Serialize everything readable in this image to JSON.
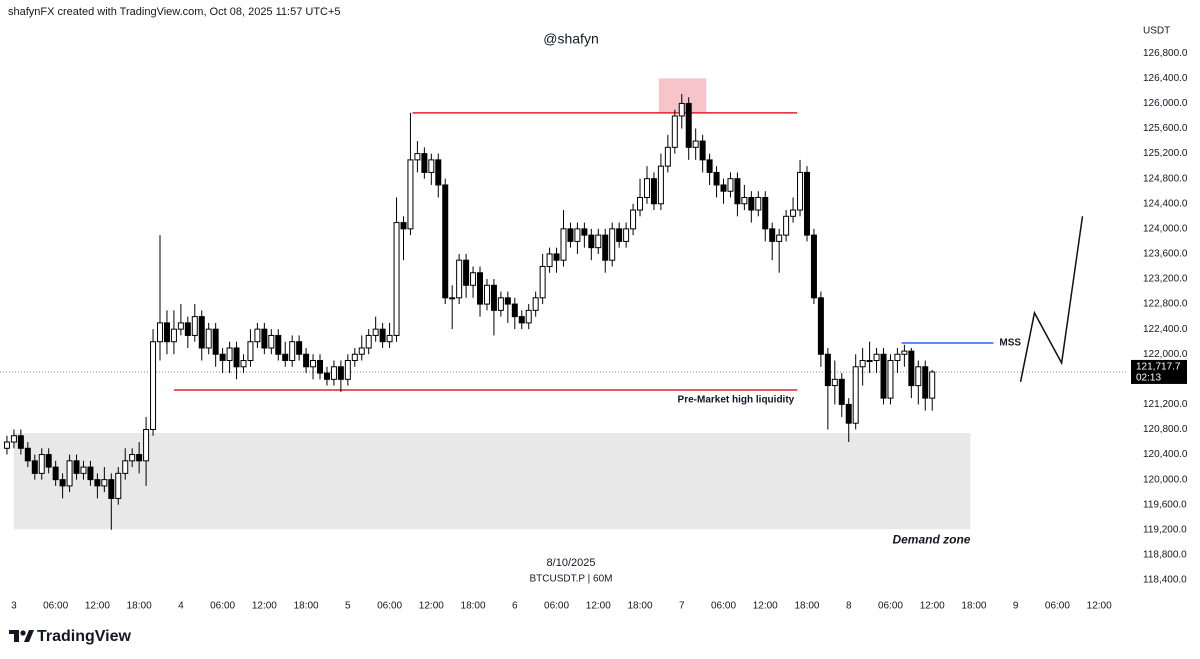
{
  "header": "shafynFX created with TradingView.com, Oct 08, 2025 11:57 UTC+5",
  "footer": {
    "brand": "TradingView"
  },
  "chart_data": {
    "type": "candlestick",
    "title": "@shafyn",
    "date_label": "8/10/2025",
    "symbol": "BTCUSDT.P | 60M",
    "y_axis_label": "USDT",
    "up_color": "#ffffff",
    "down_color": "#000000",
    "border_color": "#000000",
    "x": [
      -1,
      0,
      1,
      2,
      3,
      4,
      5,
      6,
      7,
      8,
      9,
      10,
      11,
      12,
      13,
      14,
      15,
      16,
      17,
      18,
      19,
      20,
      21,
      22,
      23,
      24,
      25,
      26,
      27,
      28,
      29,
      30,
      31,
      32,
      33,
      34,
      35,
      36,
      37,
      38,
      39,
      40,
      41,
      42,
      43,
      44,
      45,
      46,
      47,
      48,
      49,
      50,
      51,
      52,
      53,
      54,
      55,
      56,
      57,
      58,
      59,
      60,
      61,
      62,
      63,
      64,
      65,
      66,
      67,
      68,
      69,
      70,
      71,
      72,
      73,
      74,
      75,
      76,
      77,
      78,
      79,
      80,
      81,
      82,
      83,
      84,
      85,
      86,
      87,
      88,
      89,
      90,
      91,
      92,
      93,
      94,
      95,
      96,
      97,
      98,
      99,
      100,
      101,
      102,
      103,
      104,
      105,
      106,
      107,
      108,
      109,
      110,
      111,
      112,
      113,
      114,
      115,
      116,
      117,
      118,
      119,
      120,
      121,
      122,
      123,
      124,
      125,
      126,
      127,
      128,
      129,
      130,
      131,
      132
    ],
    "open": [
      120500,
      120600,
      120700,
      120500,
      120300,
      120100,
      120400,
      120200,
      120000,
      119900,
      120300,
      120100,
      120200,
      120000,
      119900,
      120000,
      119700,
      120100,
      120300,
      120400,
      120300,
      120800,
      122200,
      122500,
      122200,
      122400,
      122500,
      122300,
      122600,
      122100,
      122400,
      122000,
      121900,
      122100,
      121800,
      121900,
      122200,
      122400,
      122100,
      122300,
      122000,
      121900,
      122200,
      122000,
      121800,
      121900,
      121700,
      121600,
      121800,
      121600,
      121900,
      122000,
      122100,
      122300,
      122400,
      122200,
      122300,
      124100,
      124000,
      125100,
      125200,
      124900,
      125100,
      124700,
      122900,
      122900,
      123500,
      123100,
      123300,
      122800,
      123100,
      122700,
      122900,
      122800,
      122600,
      122500,
      122700,
      122900,
      123400,
      123600,
      123500,
      124000,
      123800,
      124000,
      123900,
      123700,
      123900,
      123500,
      124000,
      123800,
      124000,
      124300,
      124500,
      124800,
      124400,
      125000,
      125300,
      125800,
      126000,
      125300,
      125400,
      125100,
      124900,
      124700,
      124600,
      124800,
      124400,
      124500,
      124300,
      124500,
      124000,
      123800,
      123900,
      124200,
      124300,
      124900,
      123900,
      122900,
      122000,
      121500,
      121600,
      121200,
      120900,
      121800,
      121900,
      121900,
      122000,
      121300,
      121900,
      122000,
      122050,
      121500,
      121800,
      121300
    ],
    "high": [
      120700,
      120800,
      120800,
      120600,
      120400,
      120500,
      120500,
      120300,
      120100,
      120400,
      120400,
      120300,
      120300,
      120100,
      120200,
      120100,
      120200,
      120500,
      120500,
      120600,
      121000,
      122400,
      123900,
      122700,
      122700,
      122800,
      122600,
      122800,
      122700,
      122500,
      122500,
      122100,
      122200,
      122200,
      122000,
      122400,
      122500,
      122500,
      122400,
      122400,
      122200,
      122300,
      122300,
      122100,
      122000,
      122000,
      121800,
      121900,
      121900,
      122000,
      122100,
      122300,
      122400,
      122600,
      122500,
      122500,
      124500,
      124200,
      125850,
      125400,
      125300,
      125200,
      125200,
      124800,
      123100,
      123600,
      123600,
      123400,
      123400,
      123200,
      123200,
      123000,
      123000,
      122900,
      122700,
      122800,
      123000,
      123600,
      123700,
      123700,
      124300,
      124100,
      124100,
      124100,
      124000,
      124000,
      124000,
      124100,
      124100,
      124100,
      124400,
      124800,
      125000,
      124900,
      125200,
      125500,
      125900,
      126150,
      126100,
      125600,
      125500,
      125200,
      125000,
      124800,
      124900,
      124900,
      124700,
      124600,
      124600,
      124600,
      124100,
      124000,
      124300,
      124500,
      125100,
      125000,
      124000,
      123000,
      122100,
      121900,
      121700,
      121300,
      122000,
      122100,
      122200,
      122100,
      122100,
      122000,
      122100,
      122150,
      122100,
      121900,
      121900,
      121750
    ],
    "low": [
      120400,
      120500,
      120400,
      120200,
      120000,
      120000,
      120100,
      119900,
      119700,
      119800,
      120000,
      120000,
      119900,
      119700,
      119800,
      119200,
      119600,
      120000,
      120200,
      120100,
      119900,
      120700,
      121900,
      122000,
      122000,
      122300,
      122100,
      122200,
      121900,
      122000,
      121800,
      121700,
      121700,
      121600,
      121700,
      121800,
      122100,
      122000,
      122000,
      121900,
      121800,
      121800,
      121900,
      121700,
      121600,
      121600,
      121500,
      121500,
      121400,
      121500,
      121800,
      121900,
      122000,
      122200,
      122100,
      122100,
      122200,
      123500,
      123900,
      124900,
      124800,
      124700,
      124500,
      122800,
      122400,
      122800,
      122900,
      122900,
      122600,
      122700,
      122300,
      122600,
      122500,
      122400,
      122400,
      122400,
      122600,
      122800,
      123300,
      123300,
      123400,
      123700,
      123600,
      123700,
      123500,
      123600,
      123300,
      123400,
      123700,
      123700,
      123900,
      124200,
      124400,
      124300,
      124300,
      124900,
      125200,
      125600,
      125100,
      125100,
      124900,
      124700,
      124500,
      124400,
      124500,
      124200,
      124300,
      124100,
      124200,
      123800,
      123500,
      123300,
      123800,
      124100,
      124200,
      123800,
      122800,
      121800,
      120800,
      121200,
      121000,
      120600,
      120800,
      121500,
      121700,
      121700,
      121200,
      121200,
      121700,
      121800,
      121300,
      121200,
      121100,
      121100
    ],
    "close": [
      120600,
      120700,
      120500,
      120300,
      120100,
      120400,
      120200,
      120000,
      119900,
      120300,
      120100,
      120200,
      120000,
      119900,
      120000,
      119700,
      120100,
      120300,
      120400,
      120300,
      120800,
      122200,
      122500,
      122200,
      122400,
      122500,
      122300,
      122600,
      122100,
      122400,
      122000,
      121900,
      122100,
      121800,
      121900,
      122200,
      122400,
      122100,
      122300,
      122000,
      121900,
      122200,
      122000,
      121800,
      121900,
      121700,
      121600,
      121800,
      121600,
      121900,
      122000,
      122100,
      122300,
      122400,
      122200,
      122300,
      124100,
      124000,
      125100,
      125200,
      124900,
      125100,
      124700,
      122900,
      122900,
      123500,
      123100,
      123300,
      122800,
      123100,
      122700,
      122900,
      122800,
      122600,
      122500,
      122700,
      122900,
      123400,
      123600,
      123500,
      124000,
      123800,
      124000,
      123900,
      123700,
      123900,
      123500,
      124000,
      123800,
      124000,
      124300,
      124500,
      124800,
      124400,
      125000,
      125300,
      125800,
      126000,
      125300,
      125400,
      125100,
      124900,
      124700,
      124600,
      124800,
      124400,
      124500,
      124300,
      124500,
      124000,
      123800,
      123900,
      124200,
      124300,
      124900,
      123900,
      122900,
      122000,
      121500,
      121600,
      121200,
      120900,
      121800,
      121900,
      121900,
      122000,
      121300,
      121900,
      122000,
      122050,
      121500,
      121800,
      121300,
      121717.7
    ],
    "xlim": [
      -2,
      160
    ],
    "ylim": [
      118160,
      127650
    ],
    "xticks": [
      {
        "value": 0,
        "label": "3"
      },
      {
        "value": 6,
        "label": "06:00"
      },
      {
        "value": 12,
        "label": "12:00"
      },
      {
        "value": 18,
        "label": "18:00"
      },
      {
        "value": 24,
        "label": "4"
      },
      {
        "value": 30,
        "label": "06:00"
      },
      {
        "value": 36,
        "label": "12:00"
      },
      {
        "value": 42,
        "label": "18:00"
      },
      {
        "value": 48,
        "label": "5"
      },
      {
        "value": 54,
        "label": "06:00"
      },
      {
        "value": 60,
        "label": "12:00"
      },
      {
        "value": 66,
        "label": "18:00"
      },
      {
        "value": 72,
        "label": "6"
      },
      {
        "value": 78,
        "label": "06:00"
      },
      {
        "value": 84,
        "label": "12:00"
      },
      {
        "value": 90,
        "label": "18:00"
      },
      {
        "value": 96,
        "label": "7"
      },
      {
        "value": 102,
        "label": "06:00"
      },
      {
        "value": 108,
        "label": "12:00"
      },
      {
        "value": 114,
        "label": "18:00"
      },
      {
        "value": 120,
        "label": "8"
      },
      {
        "value": 126,
        "label": "06:00"
      },
      {
        "value": 132,
        "label": "12:00"
      },
      {
        "value": 138,
        "label": "18:00"
      },
      {
        "value": 144,
        "label": "9"
      },
      {
        "value": 150,
        "label": "06:00"
      },
      {
        "value": 156,
        "label": "12:00"
      }
    ],
    "yticks": [
      {
        "value": 126800,
        "label": "126,800.0"
      },
      {
        "value": 126400,
        "label": "126,400.0"
      },
      {
        "value": 126000,
        "label": "126,000.0"
      },
      {
        "value": 125600,
        "label": "125,600.0"
      },
      {
        "value": 125200,
        "label": "125,200.0"
      },
      {
        "value": 124800,
        "label": "124,800.0"
      },
      {
        "value": 124400,
        "label": "124,400.0"
      },
      {
        "value": 124000,
        "label": "124,000.0"
      },
      {
        "value": 123600,
        "label": "123,600.0"
      },
      {
        "value": 123200,
        "label": "123,200.0"
      },
      {
        "value": 122800,
        "label": "122,800.0"
      },
      {
        "value": 122400,
        "label": "122,400.0"
      },
      {
        "value": 122000,
        "label": "122,000.0"
      },
      {
        "value": 121600,
        "label": "121,600.0"
      },
      {
        "value": 121200,
        "label": "121,200.0"
      },
      {
        "value": 120800,
        "label": "120,800.0"
      },
      {
        "value": 120400,
        "label": "120,400.0"
      },
      {
        "value": 120000,
        "label": "120,000.0"
      },
      {
        "value": 119600,
        "label": "119,600.0"
      },
      {
        "value": 119200,
        "label": "119,200.0"
      },
      {
        "value": 118800,
        "label": "118,800.0"
      },
      {
        "value": 118400,
        "label": "118,400.0"
      }
    ],
    "price_marker": {
      "value": 121717.7,
      "label": "121,717.7",
      "countdown": "02:13"
    },
    "annotations": [
      {
        "type": "rect",
        "x": [
          0,
          137.5
        ],
        "y": [
          119210,
          120745
        ],
        "color": "#e8e8e8",
        "label": "Demand zone",
        "label_position": "below-end"
      },
      {
        "type": "rect",
        "x": [
          92.7,
          99.5
        ],
        "y": [
          125850,
          126400
        ],
        "color": "#f7c5c9"
      },
      {
        "type": "hline",
        "y": 125850,
        "x": [
          57.3,
          112.6
        ],
        "color": "#e0202e"
      },
      {
        "type": "hline",
        "y": 121430,
        "x": [
          23,
          112.6
        ],
        "color": "#e0202e",
        "label": "Pre-Market high liquidity",
        "label_position": "below-end"
      },
      {
        "type": "hline",
        "y": 122180,
        "x": [
          127.6,
          140.8
        ],
        "color": "#2962ff",
        "label": "MSS",
        "label_position": "after-end"
      },
      {
        "type": "path",
        "x": [
          144.7,
          146.7,
          150.6,
          153.6
        ],
        "y": [
          121560,
          122660,
          121860,
          124200
        ],
        "color": "#111111"
      }
    ]
  }
}
